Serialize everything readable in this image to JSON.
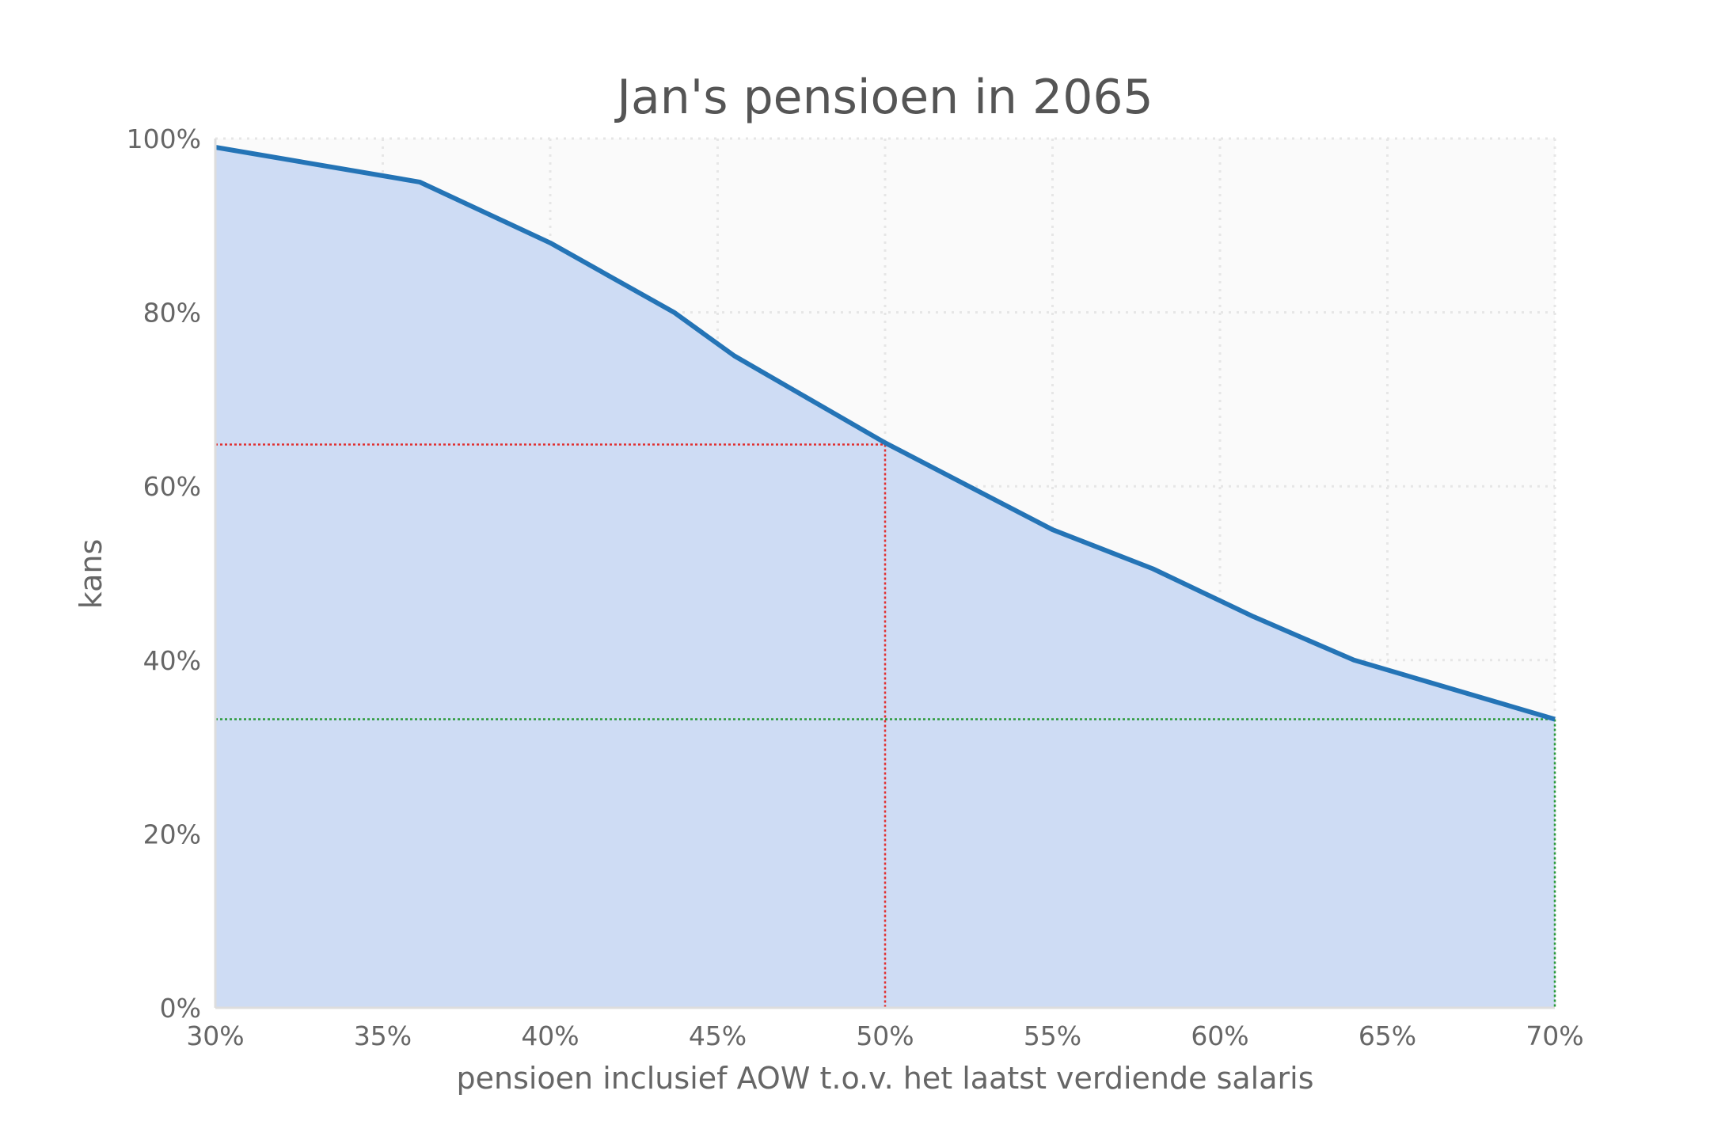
{
  "chart_data": {
    "type": "area",
    "title": "Jan's pensioen in 2065",
    "xlabel": "pensioen inclusief AOW t.o.v. het laatst verdiende salaris",
    "ylabel": "kans",
    "xlim": [
      30,
      70
    ],
    "ylim": [
      0,
      100
    ],
    "x_ticks": [
      "30%",
      "35%",
      "40%",
      "45%",
      "50%",
      "55%",
      "60%",
      "65%",
      "70%"
    ],
    "y_ticks": [
      "0%",
      "20%",
      "40%",
      "60%",
      "80%",
      "100%"
    ],
    "grid": true,
    "series": [
      {
        "x": [
          30,
          36.1,
          40,
          43.7,
          45.5,
          50,
          55,
          58,
          61,
          64,
          70
        ],
        "y": [
          99,
          95,
          88,
          80,
          75,
          65,
          55,
          50.5,
          45,
          40,
          33.2
        ]
      }
    ],
    "reference_lines": [
      {
        "x": 50,
        "y": 64.8,
        "color": "#e03030"
      },
      {
        "x": 70,
        "y": 33.2,
        "color": "#2a9a3a"
      }
    ],
    "colors": {
      "line": "#2474b6",
      "fill": "#cedcf4",
      "plot_bg": "#fafafa",
      "grid": "#e6e6e6"
    }
  }
}
